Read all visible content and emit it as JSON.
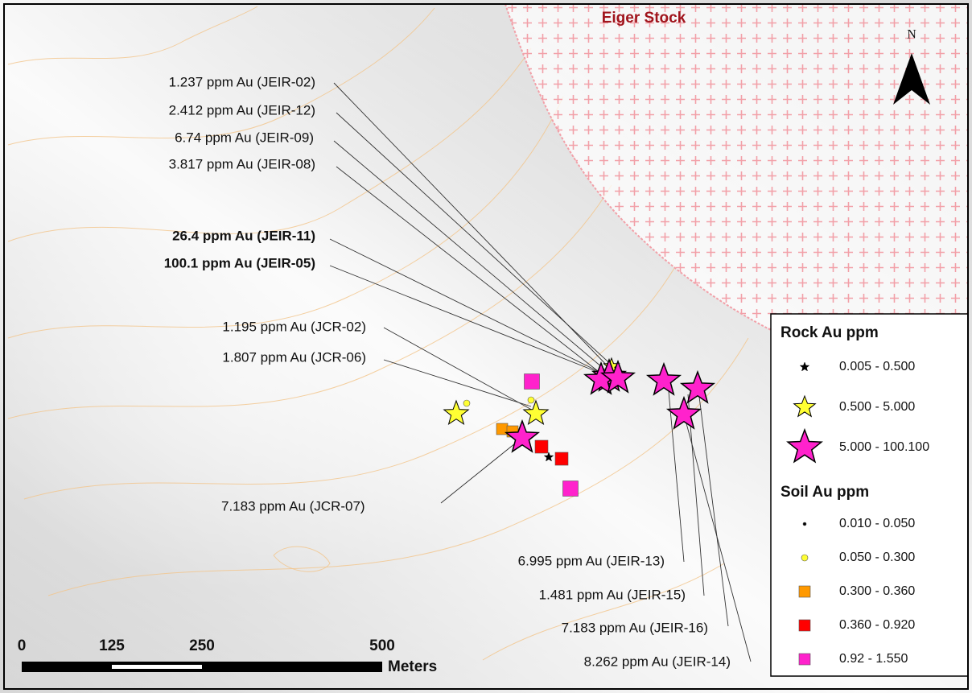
{
  "map": {
    "region_label": "Eiger Stock",
    "north_label": "N",
    "sample_labels": [
      {
        "text": "1.237 ppm Au (JEIR-02)",
        "bold": false
      },
      {
        "text": "2.412 ppm Au (JEIR-12)",
        "bold": false
      },
      {
        "text": "6.74 ppm Au (JEIR-09)",
        "bold": false
      },
      {
        "text": "3.817 ppm Au (JEIR-08)",
        "bold": false
      },
      {
        "text": "26.4 ppm Au (JEIR-11)",
        "bold": true
      },
      {
        "text": "100.1 ppm Au (JEIR-05)",
        "bold": true
      },
      {
        "text": "1.195 ppm Au (JCR-02)",
        "bold": false
      },
      {
        "text": "1.807 ppm Au (JCR-06)",
        "bold": false
      },
      {
        "text": "7.183 ppm Au (JCR-07)",
        "bold": false
      },
      {
        "text": "6.995 ppm Au (JEIR-13)",
        "bold": false
      },
      {
        "text": "1.481 ppm Au (JEIR-15)",
        "bold": false
      },
      {
        "text": "7.183 ppm Au (JEIR-16)",
        "bold": false
      },
      {
        "text": "8.262 ppm Au (JEIR-14)",
        "bold": false
      }
    ],
    "legend": {
      "rock_title": "Rock Au ppm",
      "rock_classes": [
        "0.005 - 0.500",
        "0.500 - 5.000",
        "5.000 - 100.100"
      ],
      "soil_title": "Soil Au ppm",
      "soil_classes": [
        "0.010 - 0.050",
        "0.050 - 0.300",
        "0.300 - 0.360",
        "0.360 - 0.920",
        "0.92 - 1.550"
      ]
    },
    "scale_bar": {
      "labels": [
        "0",
        "125",
        "250",
        "500"
      ],
      "unit": "Meters"
    }
  }
}
